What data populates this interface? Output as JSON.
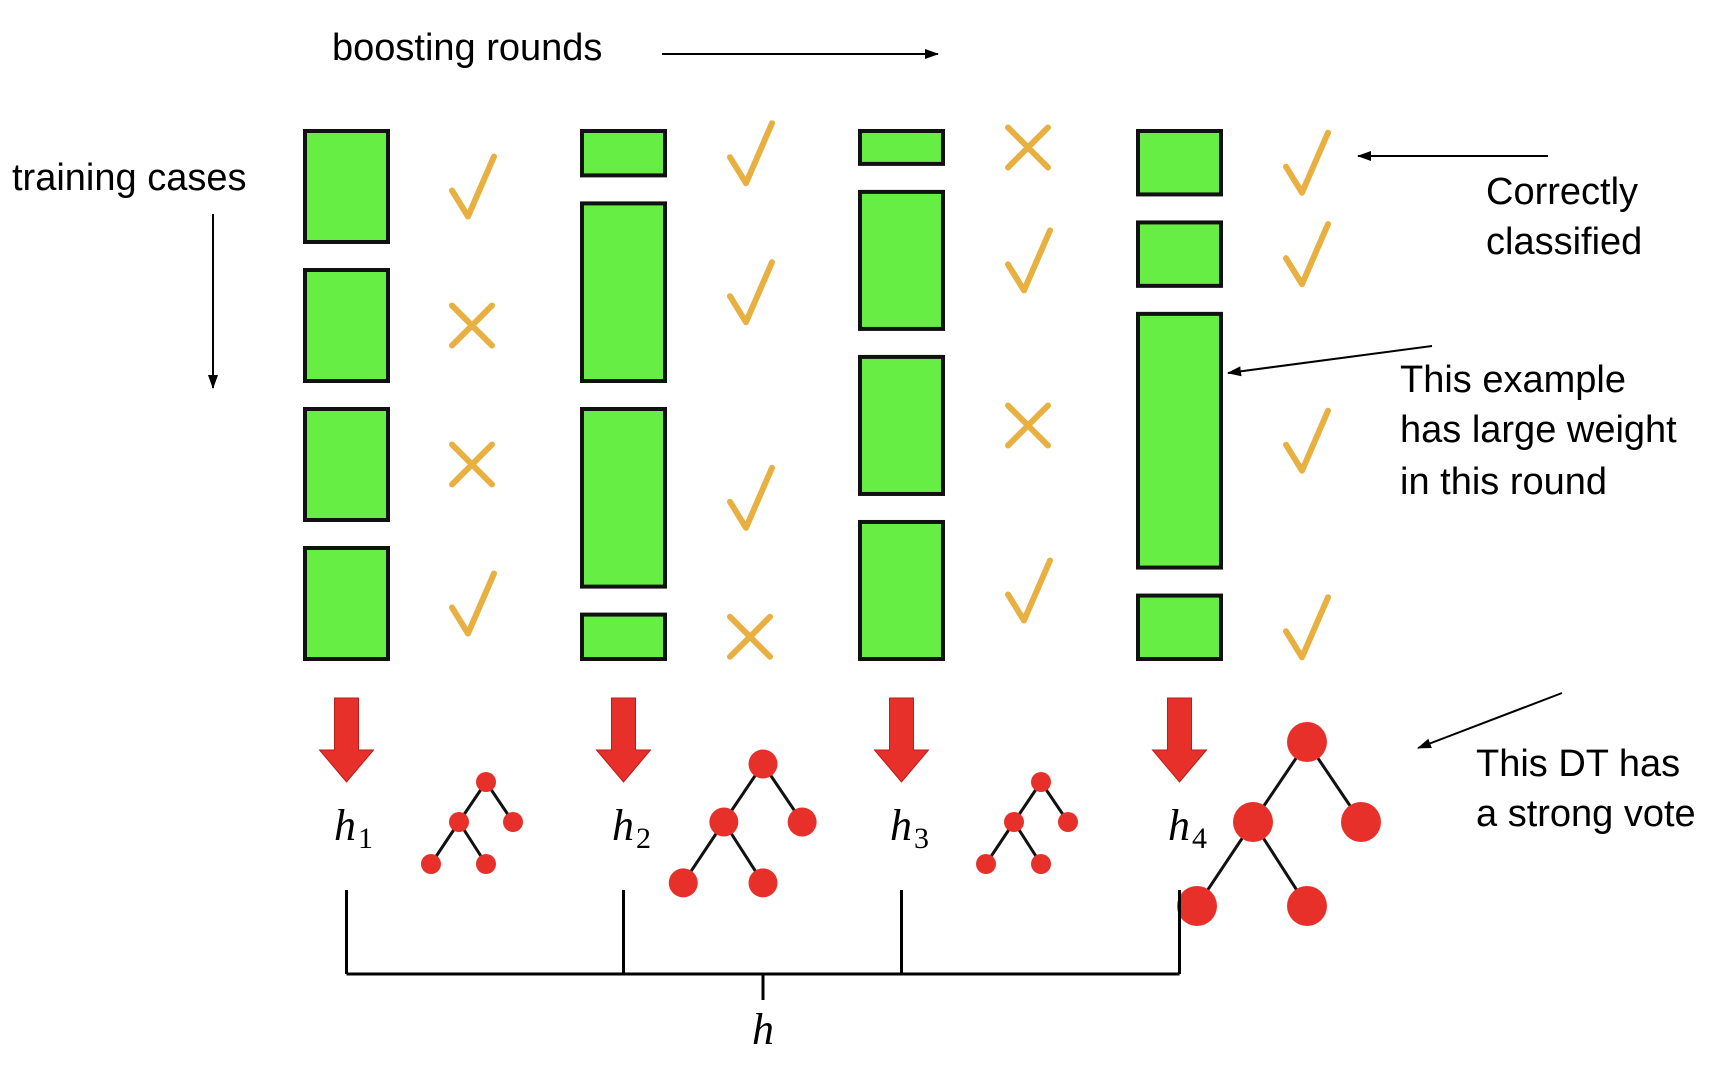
{
  "labels": {
    "boosting_rounds": "boosting rounds",
    "training_cases": "training cases",
    "correctly_classified_line1": "Correctly",
    "correctly_classified_line2": "classified",
    "large_weight_line1": "This example",
    "large_weight_line2": "has large weight",
    "large_weight_line3": "in this round",
    "strong_vote_line1": "This DT has",
    "strong_vote_line2": "a strong vote",
    "combined_hypothesis": "h"
  },
  "rounds": [
    {
      "hypothesis_symbol": "h",
      "hypothesis_index": "1",
      "cases": [
        {
          "weight": 1.0,
          "result": "correct"
        },
        {
          "weight": 1.0,
          "result": "wrong"
        },
        {
          "weight": 1.0,
          "result": "wrong"
        },
        {
          "weight": 1.0,
          "result": "correct"
        }
      ],
      "tree_size": "small"
    },
    {
      "hypothesis_symbol": "h",
      "hypothesis_index": "2",
      "cases": [
        {
          "weight": 0.4,
          "result": "correct"
        },
        {
          "weight": 1.6,
          "result": "correct"
        },
        {
          "weight": 1.6,
          "result": "correct"
        },
        {
          "weight": 0.4,
          "result": "wrong"
        }
      ],
      "tree_size": "large"
    },
    {
      "hypothesis_symbol": "h",
      "hypothesis_index": "3",
      "cases": [
        {
          "weight": 0.3,
          "result": "wrong"
        },
        {
          "weight": 1.25,
          "result": "correct"
        },
        {
          "weight": 1.25,
          "result": "wrong"
        },
        {
          "weight": 1.25,
          "result": "correct"
        }
      ],
      "tree_size": "small"
    },
    {
      "hypothesis_symbol": "h",
      "hypothesis_index": "4",
      "cases": [
        {
          "weight": 0.6,
          "result": "correct"
        },
        {
          "weight": 0.6,
          "result": "correct"
        },
        {
          "weight": 2.4,
          "result": "correct"
        },
        {
          "weight": 0.6,
          "result": "correct"
        }
      ],
      "tree_size": "extra-large"
    }
  ],
  "colors": {
    "weight_bar": "#66ee44",
    "mark": "#e8b040",
    "arrow": "#e8302a",
    "tree": "#e8302a",
    "line": "#000000"
  }
}
